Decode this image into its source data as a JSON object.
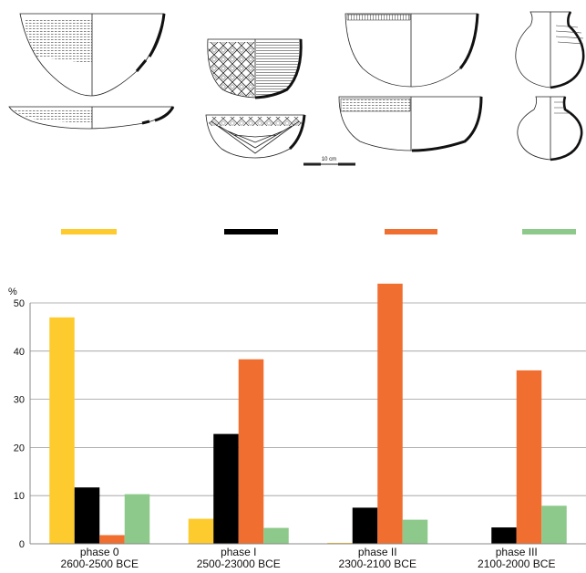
{
  "figure": {
    "scale_bar_label": "10 cm"
  },
  "chart_data": {
    "type": "bar",
    "ylabel": "%",
    "ylim": [
      0,
      50
    ],
    "yticks": [
      "0",
      "10",
      "20",
      "30",
      "40",
      "50"
    ],
    "grid": true,
    "legend": "top, color swatches only, no text",
    "categories": [
      {
        "line1": "phase 0",
        "line2": "2600-2500 BCE"
      },
      {
        "line1": "phase I",
        "line2": "2500-23000 BCE"
      },
      {
        "line1": "phase II",
        "line2": "2300-2100 BCE"
      },
      {
        "line1": "phase III",
        "line2": "2100-2000 BCE"
      }
    ],
    "series": [
      {
        "color": "#fecb2e",
        "values": [
          47,
          5.2,
          0.2,
          0
        ]
      },
      {
        "color": "#000000",
        "values": [
          11.7,
          22.8,
          7.5,
          3.4
        ]
      },
      {
        "color": "#f06e30",
        "values": [
          1.8,
          38.3,
          54,
          36
        ]
      },
      {
        "color": "#8cc98a",
        "values": [
          10.3,
          3.3,
          5,
          7.9
        ]
      }
    ]
  }
}
